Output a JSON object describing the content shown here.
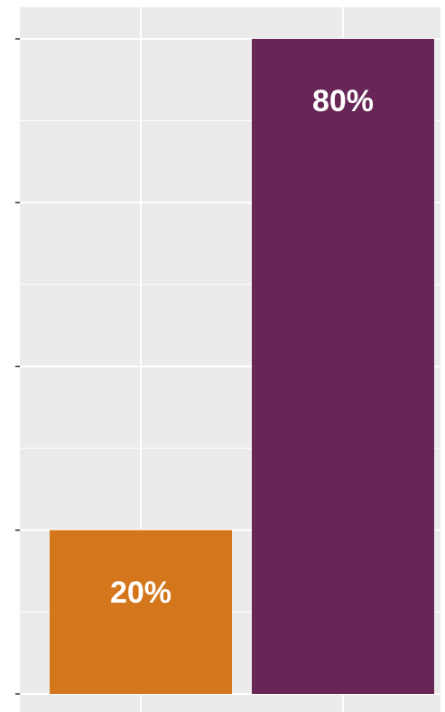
{
  "chart_data": {
    "type": "bar",
    "categories": [
      "",
      ""
    ],
    "values": [
      20,
      80
    ],
    "data_labels": [
      "20%",
      "80%"
    ],
    "colors": [
      "#D4771C",
      "#672655"
    ],
    "ylim": [
      0,
      80
    ],
    "y_ticks": [
      0,
      20,
      40,
      60,
      80
    ],
    "tick_labels_shown": false,
    "title": "",
    "xlabel": "",
    "ylabel": "",
    "grid": true,
    "legend": "none",
    "panel_background": "#EBEBEB",
    "grid_color": "#FFFFFF"
  }
}
